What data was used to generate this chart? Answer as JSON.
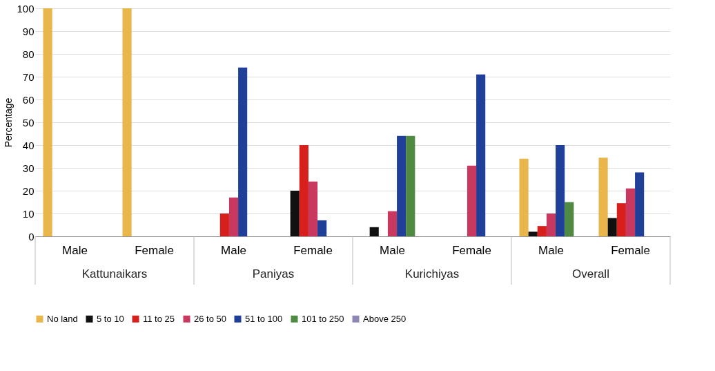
{
  "chart_data": {
    "type": "bar",
    "ylabel": "Percentage",
    "categories": [
      "Male",
      "Female",
      "Male",
      "Female",
      "Male",
      "Female",
      "Male",
      "Female"
    ],
    "annotations": [
      "Kattunaikars",
      "Paniyas",
      "Kurichiyas",
      "Overall"
    ],
    "series": [
      {
        "name": "No land",
        "color": "#e8b64a",
        "values": [
          100,
          100,
          0,
          0,
          0,
          0,
          34,
          34.5
        ]
      },
      {
        "name": "5 to 10",
        "color": "#111111",
        "values": [
          0,
          0,
          0,
          20,
          4,
          0,
          2,
          8
        ]
      },
      {
        "name": "11 to 25",
        "color": "#d7201c",
        "values": [
          0,
          0,
          10,
          40,
          0,
          0,
          4.5,
          14.5
        ]
      },
      {
        "name": "26 to 50",
        "color": "#c9385f",
        "values": [
          0,
          0,
          17,
          24,
          11,
          31,
          10,
          21
        ]
      },
      {
        "name": "51 to 100",
        "color": "#1f3f99",
        "values": [
          0,
          0,
          74,
          7,
          44,
          71,
          40,
          28
        ]
      },
      {
        "name": "101 to 250",
        "color": "#4f8a43",
        "values": [
          0,
          0,
          0,
          0,
          44,
          0,
          15,
          0
        ]
      },
      {
        "name": "Above 250",
        "color": "#8e86b5",
        "values": [
          0,
          0,
          0,
          0,
          0,
          0,
          0,
          0
        ]
      }
    ],
    "ylim": [
      0,
      100
    ],
    "yticks": [
      0,
      10,
      20,
      30,
      40,
      50,
      60,
      70,
      80,
      90,
      100
    ],
    "grid": "y",
    "legend": "bottom"
  }
}
